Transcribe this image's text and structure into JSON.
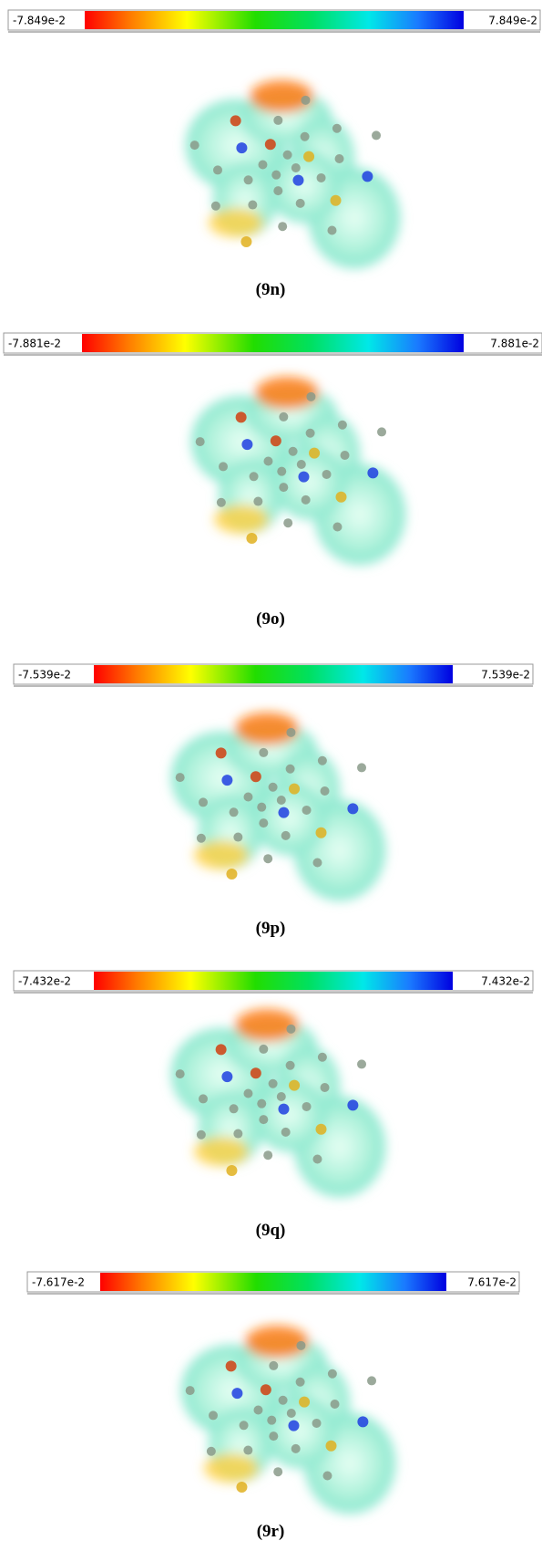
{
  "panels": [
    {
      "min_label": "-7.849e-2",
      "max_label": "7.849e-2",
      "caption": "(9n)"
    },
    {
      "min_label": "-7.881e-2",
      "max_label": "7.881e-2",
      "caption": "(9o)"
    },
    {
      "min_label": "-7.539e-2",
      "max_label": "7.539e-2",
      "caption": "(9p)"
    },
    {
      "min_label": "-7.432e-2",
      "max_label": "7.432e-2",
      "caption": "(9q)"
    },
    {
      "min_label": "-7.617e-2",
      "max_label": "7.617e-2",
      "caption": "(9r)"
    }
  ]
}
